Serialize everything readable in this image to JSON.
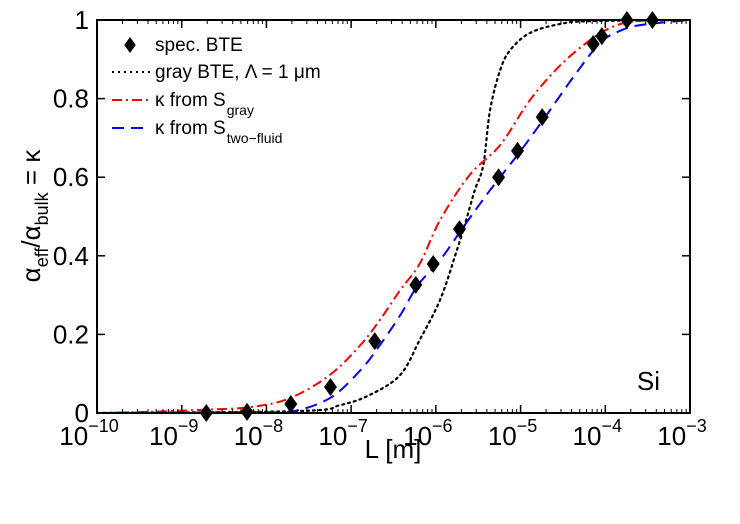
{
  "chart_data": {
    "type": "line",
    "title": "",
    "xlabel": "L [m]",
    "ylabel": {
      "alpha1": "α",
      "sub1": "eff",
      "slash": "/",
      "alpha2": "α",
      "sub2": "bulk",
      "tail": " = κ"
    },
    "xscale": "log",
    "xlim_log10": [
      -10,
      -3
    ],
    "ylim": [
      0,
      1
    ],
    "x_ticks": [
      {
        "base": "10",
        "exp": "−10",
        "log": -10
      },
      {
        "base": "10",
        "exp": "−9",
        "log": -9
      },
      {
        "base": "10",
        "exp": "−8",
        "log": -8
      },
      {
        "base": "10",
        "exp": "−7",
        "log": -7
      },
      {
        "base": "10",
        "exp": "−6",
        "log": -6
      },
      {
        "base": "10",
        "exp": "−5",
        "log": -5
      },
      {
        "base": "10",
        "exp": "−4",
        "log": -4
      },
      {
        "base": "10",
        "exp": "−3",
        "log": -3
      }
    ],
    "y_ticks": [
      {
        "label": "0",
        "value": 0
      },
      {
        "label": "0.2",
        "value": 0.2
      },
      {
        "label": "0.4",
        "value": 0.4
      },
      {
        "label": "0.6",
        "value": 0.6
      },
      {
        "label": "0.8",
        "value": 0.8
      },
      {
        "label": "1",
        "value": 1
      }
    ],
    "grid": false,
    "legend_position": "top-left",
    "annotation": "Si",
    "series": [
      {
        "name": "spec. BTE",
        "legend": {
          "main": "spec. BTE",
          "sub": ""
        },
        "style": "markers",
        "marker": "diamond",
        "color": "#000000",
        "points": [
          {
            "L": 1.95e-09,
            "kappa": 0.0
          },
          {
            "L": 5.9e-09,
            "kappa": 0.003
          },
          {
            "L": 1.94e-08,
            "kappa": 0.023
          },
          {
            "L": 5.7e-08,
            "kappa": 0.066
          },
          {
            "L": 1.9e-07,
            "kappa": 0.183
          },
          {
            "L": 5.8e-07,
            "kappa": 0.326
          },
          {
            "L": 9.3e-07,
            "kappa": 0.379
          },
          {
            "L": 1.9e-06,
            "kappa": 0.468
          },
          {
            "L": 5.5e-06,
            "kappa": 0.6
          },
          {
            "L": 9.2e-06,
            "kappa": 0.667
          },
          {
            "L": 1.8e-05,
            "kappa": 0.753
          },
          {
            "L": 7.2e-05,
            "kappa": 0.939
          },
          {
            "L": 9.1e-05,
            "kappa": 0.959
          },
          {
            "L": 0.00018,
            "kappa": 1.0
          },
          {
            "L": 0.00036,
            "kappa": 1.0
          }
        ]
      },
      {
        "name": "gray BTE, Λ = 1 μm",
        "legend": {
          "main": "gray BTE, Λ = 1 μm",
          "sub": ""
        },
        "style": "dotted",
        "color": "#000000",
        "points_log10": [
          [
            -10,
            0
          ],
          [
            -7.6,
            0.005
          ],
          [
            -7.13,
            0.02
          ],
          [
            -6.78,
            0.046
          ],
          [
            -6.42,
            0.097
          ],
          [
            -6.19,
            0.186
          ],
          [
            -5.95,
            0.288
          ],
          [
            -5.77,
            0.402
          ],
          [
            -5.66,
            0.478
          ],
          [
            -5.54,
            0.567
          ],
          [
            -5.44,
            0.631
          ],
          [
            -5.36,
            0.771
          ],
          [
            -5.24,
            0.873
          ],
          [
            -5.12,
            0.924
          ],
          [
            -4.89,
            0.967
          ],
          [
            -4.53,
            0.99
          ],
          [
            -4.18,
            0.997
          ],
          [
            -3,
            1.0
          ]
        ]
      },
      {
        "name": "κ from S_gray",
        "legend": {
          "main": "κ from S",
          "sub": "gray"
        },
        "style": "dash-dot",
        "color": "#ff0000",
        "points_log10": [
          [
            -10,
            0.0
          ],
          [
            -9.37,
            0.003
          ],
          [
            -8.78,
            0.008
          ],
          [
            -8.19,
            0.015
          ],
          [
            -7.72,
            0.038
          ],
          [
            -7.25,
            0.097
          ],
          [
            -6.89,
            0.173
          ],
          [
            -6.66,
            0.237
          ],
          [
            -6.42,
            0.313
          ],
          [
            -6.19,
            0.38
          ],
          [
            -5.95,
            0.491
          ],
          [
            -5.6,
            0.606
          ],
          [
            -5.24,
            0.682
          ],
          [
            -4.89,
            0.796
          ],
          [
            -4.53,
            0.885
          ],
          [
            -4.18,
            0.949
          ],
          [
            -3.94,
            0.98
          ],
          [
            -3.71,
            0.995
          ],
          [
            -3.35,
            1.0
          ],
          [
            -3,
            1.0
          ]
        ]
      },
      {
        "name": "κ from S_two-fluid",
        "legend": {
          "main": "κ from S",
          "sub": "two−fluid"
        },
        "style": "dashed",
        "color": "#0000ff",
        "points_log10": [
          [
            -10,
            0.0
          ],
          [
            -8.19,
            0.002
          ],
          [
            -7.72,
            0.003
          ],
          [
            -7.25,
            0.038
          ],
          [
            -6.89,
            0.109
          ],
          [
            -6.66,
            0.173
          ],
          [
            -6.42,
            0.249
          ],
          [
            -6.21,
            0.326
          ],
          [
            -5.95,
            0.389
          ],
          [
            -5.66,
            0.478
          ],
          [
            -5.36,
            0.567
          ],
          [
            -5.01,
            0.664
          ],
          [
            -4.71,
            0.753
          ],
          [
            -4.36,
            0.86
          ],
          [
            -4.06,
            0.942
          ],
          [
            -3.83,
            0.972
          ],
          [
            -3.59,
            0.987
          ],
          [
            -3,
            1.0
          ]
        ]
      }
    ]
  }
}
